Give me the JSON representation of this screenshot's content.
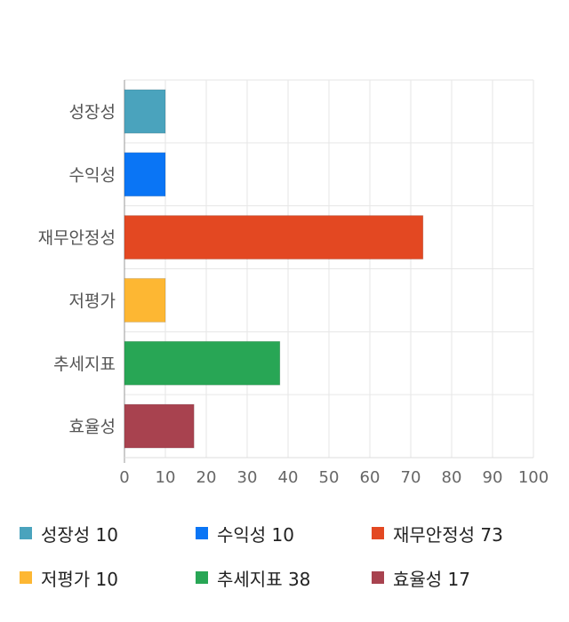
{
  "chart_data": {
    "type": "bar",
    "orientation": "horizontal",
    "categories": [
      "성장성",
      "수익성",
      "재무안정성",
      "저평가",
      "추세지표",
      "효율성"
    ],
    "values": [
      10,
      10,
      73,
      10,
      38,
      17
    ],
    "colors": [
      "#4aa3bd",
      "#0a75f5",
      "#e34822",
      "#fdb733",
      "#28a655",
      "#a8424f"
    ],
    "x_ticks": [
      0,
      10,
      20,
      30,
      40,
      50,
      60,
      70,
      80,
      90,
      100
    ],
    "xlim": [
      0,
      100
    ],
    "grid": true,
    "legend_position": "bottom",
    "legend": [
      {
        "label": "성장성",
        "value": "10",
        "color": "#4aa3bd"
      },
      {
        "label": "수익성",
        "value": "10",
        "color": "#0a75f5"
      },
      {
        "label": "재무안정성",
        "value": "73",
        "color": "#e34822"
      },
      {
        "label": "저평가",
        "value": "10",
        "color": "#fdb733"
      },
      {
        "label": "추세지표",
        "value": "38",
        "color": "#28a655"
      },
      {
        "label": "효율성",
        "value": "17",
        "color": "#a8424f"
      }
    ]
  }
}
